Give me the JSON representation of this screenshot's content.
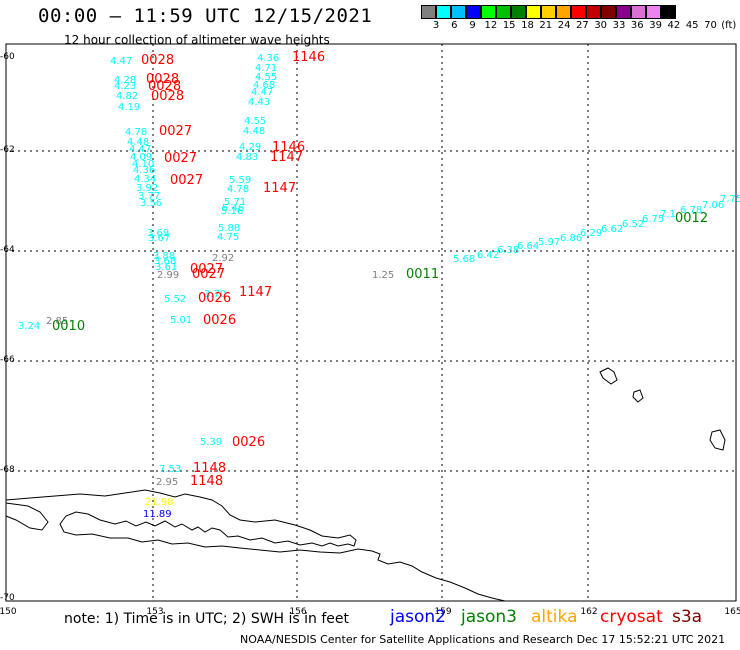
{
  "title": "00:00 – 11:59 UTC 12/15/2021",
  "subtitle": "12 hour collection of altimeter wave heights",
  "colorbar": {
    "colors": [
      "#808080",
      "#00ffff",
      "#00bfff",
      "#0000ff",
      "#00ff00",
      "#00c000",
      "#008000",
      "#ffff00",
      "#ffd000",
      "#ffa500",
      "#ff0000",
      "#c00000",
      "#800000",
      "#8b008b",
      "#da70d6",
      "#ee82ee",
      "#000000"
    ],
    "labels": [
      "3",
      "6",
      "9",
      "12",
      "15",
      "18",
      "21",
      "24",
      "27",
      "30",
      "33",
      "36",
      "39",
      "42",
      "45",
      "70",
      "(ft)"
    ]
  },
  "axes": {
    "x_ticks": [
      "150",
      "153",
      "156",
      "159",
      "162",
      "165"
    ],
    "y_ticks": [
      "-60",
      "-62",
      "-64",
      "-66",
      "-68",
      "-70"
    ]
  },
  "observations": [
    {
      "t": "4.47",
      "c": "#00ffff"
    },
    {
      "t": "0028",
      "c": "#ff0000"
    },
    {
      "t": "4.36",
      "c": "#00ffff"
    },
    {
      "t": "1146",
      "c": "#ff0000"
    },
    {
      "t": "4.71",
      "c": "#00ffff"
    },
    {
      "t": "4.55",
      "c": "#00ffff"
    },
    {
      "t": "4.68",
      "c": "#00ffff"
    },
    {
      "t": "4.47",
      "c": "#00ffff"
    },
    {
      "t": "4.43",
      "c": "#00ffff"
    },
    {
      "t": "4.28",
      "c": "#00ffff"
    },
    {
      "t": "4.23",
      "c": "#00ffff"
    },
    {
      "t": "0028",
      "c": "#ff0000"
    },
    {
      "t": "0028",
      "c": "#ff0000"
    },
    {
      "t": "4.82",
      "c": "#00ffff"
    },
    {
      "t": "0028",
      "c": "#ff0000"
    },
    {
      "t": "4.19",
      "c": "#00ffff"
    },
    {
      "t": "4.55",
      "c": "#00ffff"
    },
    {
      "t": "4.48",
      "c": "#00ffff"
    },
    {
      "t": "4.78",
      "c": "#00ffff"
    },
    {
      "t": "0027",
      "c": "#ff0000"
    },
    {
      "t": "4.48",
      "c": "#00ffff"
    },
    {
      "t": "4.29",
      "c": "#00ffff"
    },
    {
      "t": "1146",
      "c": "#ff0000"
    },
    {
      "t": "4.47",
      "c": "#00ffff"
    },
    {
      "t": "4.09",
      "c": "#00ffff"
    },
    {
      "t": "0027",
      "c": "#ff0000"
    },
    {
      "t": "4.83",
      "c": "#00ffff"
    },
    {
      "t": "1147",
      "c": "#ff0000"
    },
    {
      "t": "4.10",
      "c": "#00ffff"
    },
    {
      "t": "4.36",
      "c": "#00ffff"
    },
    {
      "t": "4.34",
      "c": "#00ffff"
    },
    {
      "t": "0027",
      "c": "#ff0000"
    },
    {
      "t": "5.59",
      "c": "#00ffff"
    },
    {
      "t": "3.92",
      "c": "#00ffff"
    },
    {
      "t": "4.78",
      "c": "#00ffff"
    },
    {
      "t": "1147",
      "c": "#ff0000"
    },
    {
      "t": "3.77",
      "c": "#00ffff"
    },
    {
      "t": "3.56",
      "c": "#00ffff"
    },
    {
      "t": "5.71",
      "c": "#00ffff"
    },
    {
      "t": "5.46",
      "c": "#00ffff"
    },
    {
      "t": "5.16",
      "c": "#00ffff"
    },
    {
      "t": "3.69",
      "c": "#00ffff"
    },
    {
      "t": "5.88",
      "c": "#00ffff"
    },
    {
      "t": "3.67",
      "c": "#00ffff"
    },
    {
      "t": "4.75",
      "c": "#00ffff"
    },
    {
      "t": "2.92",
      "c": "#808080"
    },
    {
      "t": "3.88",
      "c": "#00ffff"
    },
    {
      "t": "3.68",
      "c": "#00ffff"
    },
    {
      "t": "3.61",
      "c": "#00ffff"
    },
    {
      "t": "0027",
      "c": "#ff0000"
    },
    {
      "t": "2.99",
      "c": "#808080"
    },
    {
      "t": "0027",
      "c": "#ff0000"
    },
    {
      "t": "1.25",
      "c": "#808080"
    },
    {
      "t": "0011",
      "c": "#008000"
    },
    {
      "t": "3.70",
      "c": "#00ffff"
    },
    {
      "t": "1147",
      "c": "#ff0000"
    },
    {
      "t": "5.52",
      "c": "#00ffff"
    },
    {
      "t": "0026",
      "c": "#ff0000"
    },
    {
      "t": "5.01",
      "c": "#00ffff"
    },
    {
      "t": "0026",
      "c": "#ff0000"
    },
    {
      "t": "3.24",
      "c": "#00ffff"
    },
    {
      "t": "2.85",
      "c": "#808080"
    },
    {
      "t": "0010",
      "c": "#008000"
    },
    {
      "t": "5.68",
      "c": "#00ffff"
    },
    {
      "t": "6.42",
      "c": "#00ffff"
    },
    {
      "t": "6.38",
      "c": "#00ffff"
    },
    {
      "t": "6.64",
      "c": "#00ffff"
    },
    {
      "t": "5.97",
      "c": "#00ffff"
    },
    {
      "t": "6.86",
      "c": "#00ffff"
    },
    {
      "t": "6.29",
      "c": "#00ffff"
    },
    {
      "t": "6.62",
      "c": "#00ffff"
    },
    {
      "t": "6.52",
      "c": "#00ffff"
    },
    {
      "t": "6.75",
      "c": "#00ffff"
    },
    {
      "t": "7.1",
      "c": "#00ffff"
    },
    {
      "t": "6.78",
      "c": "#00ffff"
    },
    {
      "t": "7.06",
      "c": "#00ffff"
    },
    {
      "t": "7.75",
      "c": "#00ffff"
    },
    {
      "t": "0012",
      "c": "#008000"
    },
    {
      "t": "5.39",
      "c": "#00ffff"
    },
    {
      "t": "0026",
      "c": "#ff0000"
    },
    {
      "t": "7.53",
      "c": "#00ffff"
    },
    {
      "t": "1148",
      "c": "#ff0000"
    },
    {
      "t": "2.95",
      "c": "#808080"
    },
    {
      "t": "1148",
      "c": "#ff0000"
    },
    {
      "t": "21.98",
      "c": "#ffff00"
    },
    {
      "t": "11.89",
      "c": "#0000ff"
    }
  ],
  "legend": {
    "note": "note:  1) Time is in UTC;  2) SWH is in feet",
    "satellites": [
      {
        "name": "jason2",
        "color": "#0000ff"
      },
      {
        "name": "jason3",
        "color": "#008000"
      },
      {
        "name": "altika",
        "color": "#ffa500"
      },
      {
        "name": "cryosat",
        "color": "#ff0000"
      },
      {
        "name": "s3a",
        "color": "#800000"
      }
    ]
  },
  "footer": "NOAA/NESDIS Center for Satellite Applications and Research    Dec 17 15:52:21 UTC 2021"
}
